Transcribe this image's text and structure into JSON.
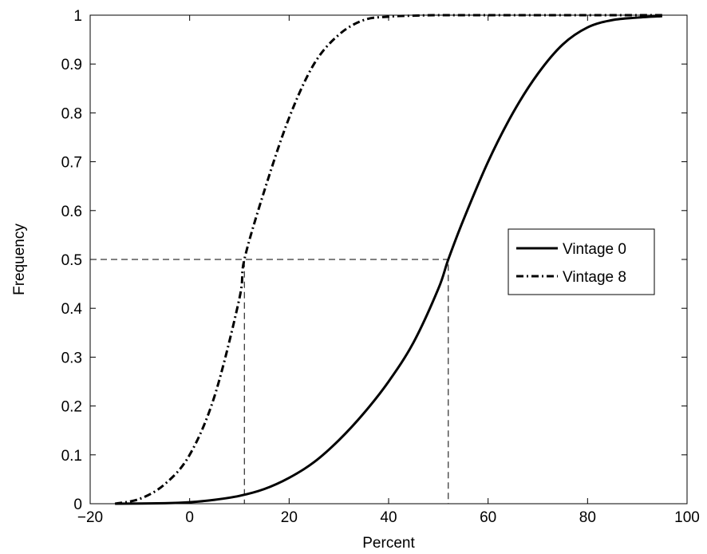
{
  "chart_data": {
    "type": "line",
    "xlabel": "Percent",
    "ylabel": "Frequency",
    "xlim": [
      -20,
      100
    ],
    "ylim": [
      0,
      1
    ],
    "x_ticks": [
      -20,
      0,
      20,
      40,
      60,
      80,
      100
    ],
    "y_ticks": [
      0,
      0.1,
      0.2,
      0.3,
      0.4,
      0.5,
      0.6,
      0.7,
      0.8,
      0.9,
      1
    ],
    "x_tick_labels": [
      "−20",
      "0",
      "20",
      "40",
      "60",
      "80",
      "100"
    ],
    "y_tick_labels": [
      "0",
      "0.1",
      "0.2",
      "0.3",
      "0.4",
      "0.5",
      "0.6",
      "0.7",
      "0.8",
      "0.9",
      "1"
    ],
    "grid": false,
    "legend_position": "right",
    "series": [
      {
        "name": "Vintage 0",
        "style": "solid",
        "color": "#000000",
        "x": [
          -15,
          -5,
          0,
          5,
          10,
          15,
          20,
          25,
          30,
          35,
          40,
          45,
          50,
          52,
          55,
          60,
          65,
          70,
          75,
          80,
          85,
          90,
          95
        ],
        "y": [
          0,
          0.001,
          0.003,
          0.008,
          0.016,
          0.03,
          0.053,
          0.085,
          0.13,
          0.185,
          0.25,
          0.33,
          0.44,
          0.5,
          0.58,
          0.7,
          0.8,
          0.88,
          0.94,
          0.975,
          0.99,
          0.995,
          0.998
        ]
      },
      {
        "name": "Vintage 8",
        "style": "dash-dot",
        "color": "#000000",
        "x": [
          -15,
          -10,
          -5,
          0,
          5,
          10,
          11,
          15,
          20,
          25,
          30,
          35,
          40,
          45,
          50,
          60,
          70,
          80,
          95
        ],
        "y": [
          0,
          0.01,
          0.04,
          0.1,
          0.22,
          0.42,
          0.5,
          0.64,
          0.79,
          0.9,
          0.96,
          0.99,
          0.997,
          0.999,
          1,
          1,
          1,
          1,
          1
        ]
      }
    ],
    "reference_lines": [
      {
        "series": "Vintage 8",
        "x": 11,
        "y": 0.5
      },
      {
        "series": "Vintage 0",
        "x": 52,
        "y": 0.5
      }
    ]
  }
}
